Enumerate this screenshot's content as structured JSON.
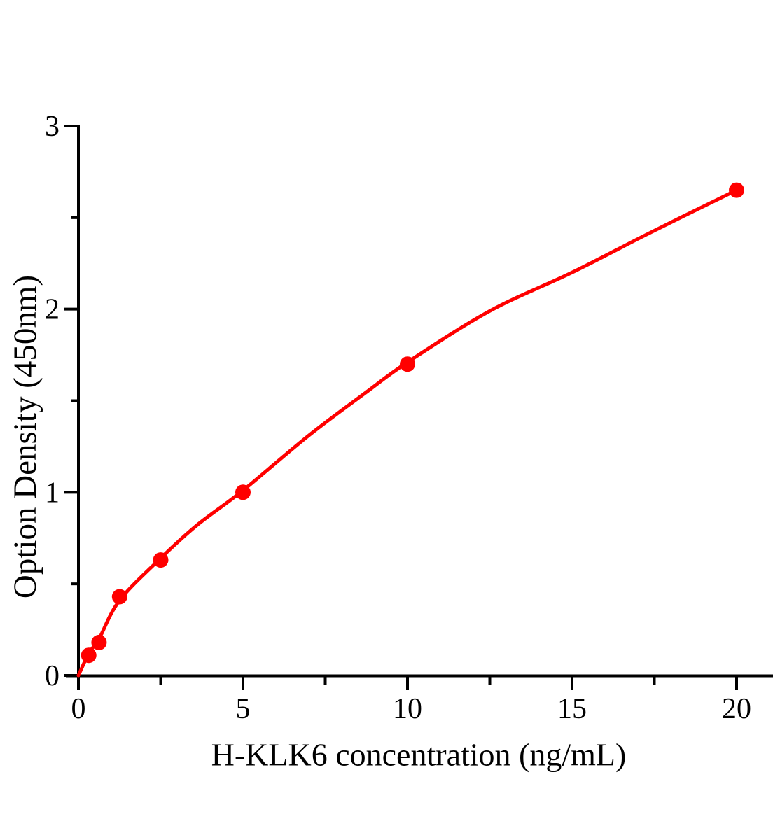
{
  "figure": {
    "background": "#ffffff",
    "axis_color": "#000000",
    "accent_red": "#ff0000"
  },
  "chart_data": {
    "type": "scatter",
    "title": "",
    "xlabel": "H-KLK6 concentration（ng/mL）",
    "ylabel": "Option Density（450nm）",
    "xlim": [
      0,
      21.1
    ],
    "ylim": [
      0,
      3
    ],
    "xticks": [
      0,
      5,
      10,
      15,
      20
    ],
    "xminorticks": [
      2.5,
      7.5,
      12.5,
      17.5
    ],
    "yticks": [
      0,
      1,
      2,
      3
    ],
    "yminorticks": [
      0.5,
      1.5,
      2.5
    ],
    "grid": false,
    "legend": null,
    "marker_color": "#ff0000",
    "line_color": "#ff0000",
    "series": [
      {
        "name": "standard-points",
        "type": "scatter",
        "x": [
          0.313,
          0.625,
          1.25,
          2.5,
          5,
          10,
          20
        ],
        "y": [
          0.11,
          0.18,
          0.43,
          0.63,
          1.0,
          1.7,
          2.65
        ]
      },
      {
        "name": "fitted-curve",
        "type": "line",
        "x": [
          0,
          0.313,
          0.625,
          1.25,
          2.5,
          3.6,
          5,
          7,
          8.7,
          10,
          12.5,
          15,
          17.4,
          20
        ],
        "y": [
          0,
          0.12,
          0.2,
          0.41,
          0.64,
          0.82,
          1.01,
          1.31,
          1.54,
          1.71,
          1.99,
          2.2,
          2.42,
          2.65
        ]
      }
    ]
  }
}
